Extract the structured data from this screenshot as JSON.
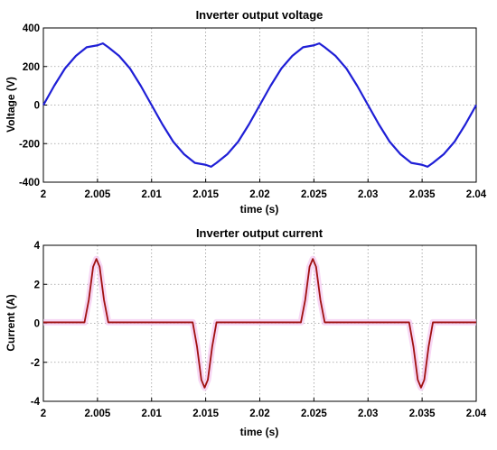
{
  "chart_data": [
    {
      "type": "line",
      "title": "Inverter output voltage",
      "xlabel": "time (s)",
      "ylabel": "Voltage (V)",
      "xlim": [
        2,
        2.04
      ],
      "ylim": [
        -400,
        400
      ],
      "x_ticks": [
        "2",
        "2.005",
        "2.01",
        "2.015",
        "2.02",
        "2.025",
        "2.03",
        "2.035",
        "2.04"
      ],
      "y_ticks": [
        "400",
        "200",
        "0",
        "-200",
        "-400"
      ],
      "grid": true,
      "series": [
        {
          "color": "#1f1fd6",
          "x": [
            2.0,
            2.001,
            2.002,
            2.003,
            2.004,
            2.005,
            2.0055,
            2.006,
            2.007,
            2.008,
            2.009,
            2.01,
            2.011,
            2.012,
            2.013,
            2.014,
            2.015,
            2.0155,
            2.016,
            2.017,
            2.018,
            2.019,
            2.02,
            2.021,
            2.022,
            2.023,
            2.024,
            2.025,
            2.0255,
            2.026,
            2.027,
            2.028,
            2.029,
            2.03,
            2.031,
            2.032,
            2.033,
            2.034,
            2.035,
            2.0355,
            2.036,
            2.037,
            2.038,
            2.039,
            2.04
          ],
          "y": [
            0,
            100,
            190,
            255,
            300,
            310,
            320,
            300,
            255,
            190,
            100,
            0,
            -100,
            -190,
            -255,
            -300,
            -310,
            -320,
            -300,
            -255,
            -190,
            -100,
            0,
            100,
            190,
            255,
            300,
            310,
            320,
            300,
            255,
            190,
            100,
            0,
            -100,
            -190,
            -255,
            -300,
            -310,
            -320,
            -300,
            -255,
            -190,
            -100,
            0
          ]
        }
      ]
    },
    {
      "type": "line",
      "title": "Inverter output current",
      "xlabel": "time (s)",
      "ylabel": "Current (A)",
      "xlim": [
        2,
        2.04
      ],
      "ylim": [
        -4,
        4
      ],
      "x_ticks": [
        "2",
        "2.005",
        "2.01",
        "2.015",
        "2.02",
        "2.025",
        "2.03",
        "2.035",
        "2.04"
      ],
      "y_ticks": [
        "4",
        "2",
        "0",
        "-2",
        "-4"
      ],
      "grid": true,
      "series": [
        {
          "color": "#a01010",
          "x": [
            2.0,
            2.0038,
            2.0042,
            2.0046,
            2.0049,
            2.0052,
            2.0056,
            2.006,
            2.0138,
            2.0142,
            2.0146,
            2.0149,
            2.0152,
            2.0156,
            2.016,
            2.0238,
            2.0242,
            2.0246,
            2.0249,
            2.0252,
            2.0256,
            2.026,
            2.0338,
            2.0342,
            2.0346,
            2.0349,
            2.0352,
            2.0356,
            2.036,
            2.04
          ],
          "y": [
            0.05,
            0.05,
            1.2,
            2.9,
            3.3,
            2.9,
            1.2,
            0.05,
            0.05,
            -1.2,
            -2.9,
            -3.3,
            -2.9,
            -1.2,
            0.05,
            0.05,
            1.2,
            2.9,
            3.3,
            2.9,
            1.2,
            0.05,
            0.05,
            -1.2,
            -2.9,
            -3.3,
            -2.9,
            -1.2,
            0.05,
            0.05
          ]
        }
      ]
    }
  ]
}
